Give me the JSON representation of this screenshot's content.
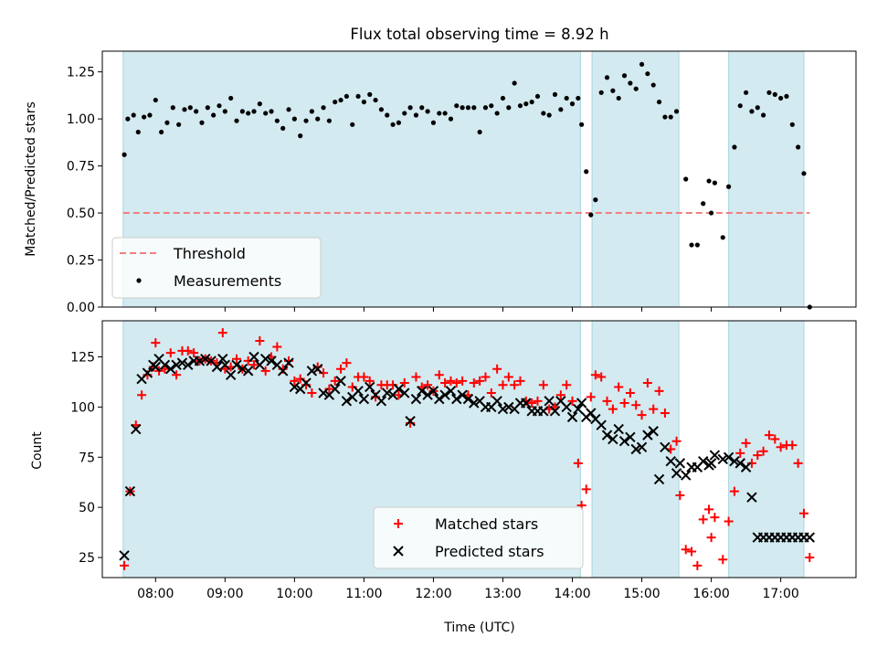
{
  "title": "Flux total observing time = 8.92 h",
  "colors": {
    "band": "#a8d5e2",
    "threshold": "#f08080",
    "matched": "#ff0000",
    "predicted": "#000000",
    "points": "#000000"
  },
  "chart_data": [
    {
      "type": "scatter",
      "panel": "top",
      "title": "Flux total observing time = 8.92 h",
      "xlabel": "",
      "ylabel": "Matched/Predicted stars",
      "xlim": [
        "07:14",
        "18:05"
      ],
      "ylim": [
        0,
        1.36
      ],
      "yticks": [
        "0.00",
        "0.25",
        "0.50",
        "0.75",
        "1.00",
        "1.25"
      ],
      "grid": false,
      "legend": {
        "position": "lower-left",
        "entries": [
          "Threshold",
          "Measurements"
        ]
      },
      "observing_windows": [
        [
          "07:32",
          "14:07"
        ],
        [
          "14:17",
          "15:32"
        ],
        [
          "16:15",
          "17:20"
        ]
      ],
      "threshold": {
        "name": "Threshold",
        "y": 0.5,
        "x": [
          "07:32",
          "17:25"
        ]
      },
      "series": [
        {
          "name": "Measurements",
          "marker": "dot",
          "x": [
            "07:33",
            "07:36",
            "07:41",
            "07:45",
            "07:50",
            "07:55",
            "08:00",
            "08:05",
            "08:10",
            "08:15",
            "08:20",
            "08:25",
            "08:30",
            "08:35",
            "08:40",
            "08:45",
            "08:50",
            "08:55",
            "09:00",
            "09:05",
            "09:10",
            "09:15",
            "09:20",
            "09:25",
            "09:30",
            "09:35",
            "09:40",
            "09:45",
            "09:50",
            "09:55",
            "10:00",
            "10:05",
            "10:10",
            "10:15",
            "10:20",
            "10:25",
            "10:30",
            "10:35",
            "10:40",
            "10:45",
            "10:50",
            "10:55",
            "11:00",
            "11:05",
            "11:10",
            "11:15",
            "11:20",
            "11:25",
            "11:30",
            "11:35",
            "11:40",
            "11:45",
            "11:50",
            "11:55",
            "12:00",
            "12:05",
            "12:10",
            "12:15",
            "12:20",
            "12:25",
            "12:30",
            "12:35",
            "12:40",
            "12:45",
            "12:50",
            "12:55",
            "13:00",
            "13:05",
            "13:10",
            "13:15",
            "13:20",
            "13:25",
            "13:30",
            "13:35",
            "13:40",
            "13:45",
            "13:50",
            "13:55",
            "14:00",
            "14:05",
            "14:08",
            "14:12",
            "14:16",
            "14:20",
            "14:25",
            "14:30",
            "14:35",
            "14:40",
            "14:45",
            "14:50",
            "14:55",
            "15:00",
            "15:05",
            "15:10",
            "15:15",
            "15:20",
            "15:25",
            "15:30",
            "15:38",
            "15:43",
            "15:48",
            "15:53",
            "15:58",
            "16:00",
            "16:03",
            "16:10",
            "16:15",
            "16:20",
            "16:25",
            "16:30",
            "16:35",
            "16:40",
            "16:45",
            "16:50",
            "16:55",
            "17:00",
            "17:05",
            "17:10",
            "17:15",
            "17:20",
            "17:25"
          ],
          "y": [
            0.81,
            1.0,
            1.02,
            0.93,
            1.01,
            1.02,
            1.1,
            0.93,
            0.98,
            1.06,
            0.97,
            1.05,
            1.06,
            1.04,
            0.98,
            1.06,
            1.02,
            1.07,
            1.04,
            1.11,
            0.99,
            1.04,
            1.03,
            1.04,
            1.08,
            1.03,
            1.04,
            0.99,
            0.95,
            1.05,
            1.0,
            0.91,
            0.99,
            1.04,
            1.0,
            1.06,
            0.99,
            1.09,
            1.1,
            1.12,
            0.97,
            1.12,
            1.09,
            1.13,
            1.1,
            1.05,
            1.02,
            0.97,
            0.98,
            1.03,
            1.06,
            1.02,
            1.06,
            1.04,
            0.98,
            1.03,
            1.03,
            1.0,
            1.07,
            1.06,
            1.06,
            1.06,
            0.93,
            1.06,
            1.07,
            1.03,
            1.11,
            1.06,
            1.19,
            1.07,
            1.08,
            1.09,
            1.12,
            1.03,
            1.02,
            1.13,
            1.05,
            1.11,
            1.08,
            1.11,
            0.97,
            0.72,
            0.49,
            0.57,
            1.14,
            1.22,
            1.15,
            1.11,
            1.23,
            1.19,
            1.16,
            1.29,
            1.24,
            1.18,
            1.09,
            1.01,
            1.01,
            1.04,
            0.68,
            0.33,
            0.33,
            0.55,
            0.67,
            0.5,
            0.66,
            0.37,
            0.64,
            0.85,
            1.07,
            1.14,
            1.04,
            1.06,
            1.02,
            1.14,
            1.13,
            1.11,
            1.12,
            0.97,
            0.85,
            0.71,
            0.0
          ]
        }
      ]
    },
    {
      "type": "scatter",
      "panel": "bottom",
      "title": "",
      "xlabel": "Time (UTC)",
      "ylabel": "Count",
      "xlim": [
        "07:14",
        "18:05"
      ],
      "xticks": [
        "08:00",
        "09:00",
        "10:00",
        "11:00",
        "12:00",
        "13:00",
        "14:00",
        "15:00",
        "16:00",
        "17:00"
      ],
      "ylim": [
        15,
        143
      ],
      "yticks": [
        "25",
        "50",
        "75",
        "100",
        "125"
      ],
      "grid": false,
      "legend": {
        "position": "lower-center",
        "entries": [
          "Matched stars",
          "Predicted stars"
        ]
      },
      "observing_windows": [
        [
          "07:32",
          "14:07"
        ],
        [
          "14:17",
          "15:32"
        ],
        [
          "16:15",
          "17:20"
        ]
      ],
      "series": [
        {
          "name": "Matched stars",
          "marker": "plus",
          "x": [
            "07:33",
            "07:38",
            "07:43",
            "07:48",
            "07:53",
            "07:58",
            "08:00",
            "08:03",
            "08:08",
            "08:13",
            "08:18",
            "08:23",
            "08:28",
            "08:33",
            "08:38",
            "08:43",
            "08:48",
            "08:53",
            "08:58",
            "09:00",
            "09:05",
            "09:10",
            "09:15",
            "09:20",
            "09:25",
            "09:30",
            "09:35",
            "09:40",
            "09:45",
            "09:50",
            "09:55",
            "10:00",
            "10:05",
            "10:10",
            "10:15",
            "10:20",
            "10:25",
            "10:30",
            "10:35",
            "10:40",
            "10:45",
            "10:50",
            "10:55",
            "11:00",
            "11:05",
            "11:10",
            "11:15",
            "11:20",
            "11:25",
            "11:30",
            "11:35",
            "11:40",
            "11:45",
            "11:50",
            "11:55",
            "12:00",
            "12:05",
            "12:10",
            "12:15",
            "12:20",
            "12:25",
            "12:30",
            "12:35",
            "12:40",
            "12:45",
            "12:50",
            "12:55",
            "13:00",
            "13:05",
            "13:10",
            "13:15",
            "13:20",
            "13:25",
            "13:30",
            "13:35",
            "13:40",
            "13:45",
            "13:50",
            "13:55",
            "14:00",
            "14:05",
            "14:08",
            "14:12",
            "14:16",
            "14:20",
            "14:25",
            "14:30",
            "14:35",
            "14:40",
            "14:45",
            "14:50",
            "14:55",
            "15:00",
            "15:05",
            "15:10",
            "15:15",
            "15:20",
            "15:25",
            "15:30",
            "15:33",
            "15:38",
            "15:43",
            "15:48",
            "15:53",
            "15:58",
            "16:00",
            "16:03",
            "16:10",
            "16:15",
            "16:20",
            "16:25",
            "16:30",
            "16:35",
            "16:40",
            "16:45",
            "16:50",
            "16:55",
            "17:00",
            "17:05",
            "17:10",
            "17:15",
            "17:20",
            "17:25"
          ],
          "y": [
            21,
            58,
            91,
            106,
            116,
            120,
            132,
            118,
            119,
            127,
            116,
            128,
            128,
            127,
            123,
            124,
            123,
            122,
            137,
            119,
            120,
            124,
            119,
            123,
            121,
            133,
            118,
            125,
            130,
            119,
            123,
            113,
            114,
            111,
            107,
            120,
            117,
            109,
            113,
            119,
            122,
            110,
            115,
            115,
            113,
            105,
            111,
            111,
            111,
            106,
            112,
            92,
            115,
            110,
            111,
            108,
            116,
            112,
            113,
            112,
            113,
            106,
            112,
            113,
            115,
            107,
            119,
            111,
            115,
            111,
            113,
            103,
            102,
            103,
            111,
            99,
            100,
            106,
            111,
            103,
            72,
            51,
            59,
            105,
            116,
            115,
            103,
            99,
            110,
            102,
            107,
            101,
            96,
            112,
            99,
            108,
            97,
            79,
            83,
            56,
            29,
            28,
            21,
            44,
            49,
            35,
            45,
            24,
            43,
            58,
            77,
            82,
            72,
            76,
            78,
            86,
            84,
            80,
            81,
            81,
            72,
            47,
            25
          ]
        },
        {
          "name": "Predicted stars",
          "marker": "x",
          "x": [
            "07:33",
            "07:38",
            "07:43",
            "07:48",
            "07:53",
            "07:58",
            "08:00",
            "08:03",
            "08:08",
            "08:13",
            "08:18",
            "08:23",
            "08:28",
            "08:33",
            "08:38",
            "08:43",
            "08:48",
            "08:53",
            "08:58",
            "09:00",
            "09:05",
            "09:10",
            "09:15",
            "09:20",
            "09:25",
            "09:30",
            "09:35",
            "09:40",
            "09:45",
            "09:50",
            "09:55",
            "10:00",
            "10:05",
            "10:10",
            "10:15",
            "10:20",
            "10:25",
            "10:30",
            "10:35",
            "10:40",
            "10:45",
            "10:50",
            "10:55",
            "11:00",
            "11:05",
            "11:10",
            "11:15",
            "11:20",
            "11:25",
            "11:30",
            "11:35",
            "11:40",
            "11:45",
            "11:50",
            "11:55",
            "12:00",
            "12:05",
            "12:10",
            "12:15",
            "12:20",
            "12:25",
            "12:30",
            "12:35",
            "12:40",
            "12:45",
            "12:50",
            "12:55",
            "13:00",
            "13:05",
            "13:10",
            "13:15",
            "13:20",
            "13:25",
            "13:30",
            "13:35",
            "13:40",
            "13:45",
            "13:50",
            "13:55",
            "14:00",
            "14:05",
            "14:08",
            "14:12",
            "14:16",
            "14:20",
            "14:25",
            "14:30",
            "14:35",
            "14:40",
            "14:45",
            "14:50",
            "14:55",
            "15:00",
            "15:05",
            "15:10",
            "15:15",
            "15:20",
            "15:25",
            "15:30",
            "15:33",
            "15:38",
            "15:43",
            "15:48",
            "15:53",
            "15:58",
            "16:00",
            "16:03",
            "16:10",
            "16:15",
            "16:20",
            "16:25",
            "16:30",
            "16:35",
            "16:40",
            "16:45",
            "16:50",
            "16:55",
            "17:00",
            "17:05",
            "17:10",
            "17:15",
            "17:20",
            "17:25"
          ],
          "y": [
            26,
            58,
            89,
            114,
            117,
            121,
            120,
            124,
            121,
            119,
            121,
            122,
            121,
            123,
            123,
            124,
            123,
            120,
            124,
            121,
            116,
            121,
            119,
            118,
            125,
            121,
            124,
            123,
            121,
            118,
            122,
            110,
            109,
            112,
            118,
            119,
            107,
            106,
            109,
            113,
            103,
            105,
            108,
            104,
            110,
            106,
            103,
            107,
            106,
            109,
            107,
            93,
            104,
            108,
            106,
            108,
            104,
            106,
            108,
            104,
            106,
            104,
            102,
            103,
            100,
            100,
            103,
            99,
            100,
            99,
            102,
            102,
            98,
            98,
            98,
            103,
            98,
            103,
            100,
            95,
            99,
            102,
            95,
            97,
            94,
            91,
            86,
            84,
            89,
            83,
            85,
            79,
            80,
            86,
            88,
            64,
            80,
            73,
            67,
            72,
            66,
            70,
            70,
            73,
            71,
            72,
            76,
            74,
            75,
            73,
            72,
            70,
            55,
            35,
            35,
            35,
            35,
            35,
            35,
            35,
            35,
            35,
            35
          ]
        }
      ]
    }
  ]
}
